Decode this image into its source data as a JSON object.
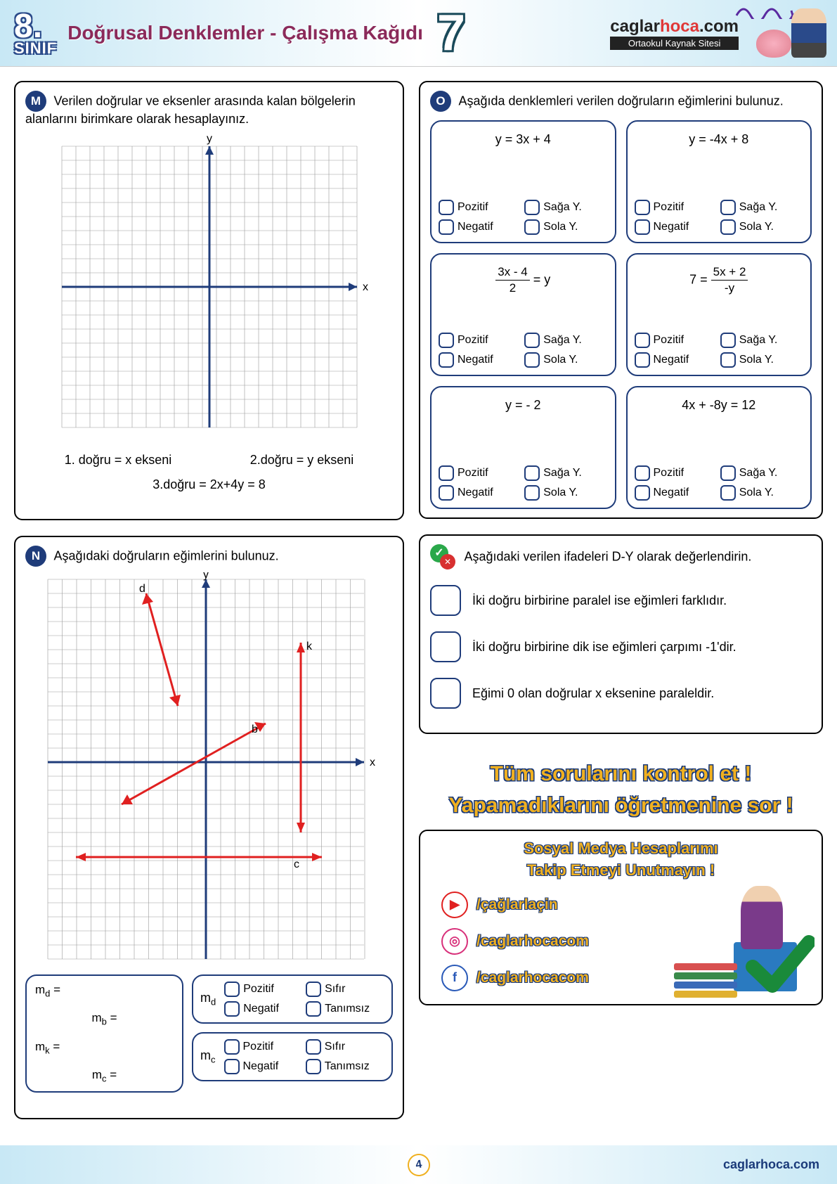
{
  "header": {
    "grade": "8.",
    "grade_sub": "SINIF",
    "title": "Doğrusal Denklemler - Çalışma Kağıdı",
    "page_number": "7",
    "logo_caglar": "caglar",
    "logo_hoca": "hoca",
    "logo_com": ".com",
    "logo_sub": "Ortaokul Kaynak Sitesi"
  },
  "panelM": {
    "badge": "M",
    "title": "Verilen doğrular ve eksenler arasında kalan bölgelerin alanlarını birimkare olarak hesaplayınız.",
    "line1": "1. doğru = x ekseni",
    "line2": "2.doğru = y ekseni",
    "line3": "3.doğru = 2x+4y = 8",
    "axis_colors": {
      "axis": "#1f3c7a",
      "grid": "#999999"
    },
    "x_label": "x",
    "y_label": "y"
  },
  "panelN": {
    "badge": "N",
    "title": "Aşağıdaki doğruların eğimlerini bulunuz.",
    "line_labels": {
      "d": "d",
      "k": "k",
      "b": "b",
      "c": "c"
    },
    "line_color": "#e02020",
    "slopesLeft": {
      "md": "m",
      "mb": "m",
      "mk": "m",
      "mc": "m",
      "sub_d": "d",
      "sub_b": "b",
      "sub_k": "k",
      "sub_c": "c",
      "eq": " ="
    },
    "rightBoxes": [
      {
        "label": "m",
        "sub": "d"
      },
      {
        "label": "m",
        "sub": "c"
      }
    ],
    "checks": {
      "pozitif": "Pozitif",
      "negatif": "Negatif",
      "sifir": "Sıfır",
      "tanimsiz": "Tanımsız"
    }
  },
  "panelO": {
    "badge": "O",
    "title": "Aşağıda denklemleri verilen doğruların eğimlerini bulunuz.",
    "equations": [
      {
        "plain": "y = 3x + 4"
      },
      {
        "plain": "y = -4x + 8"
      },
      {
        "frac_top": "3x - 4",
        "frac_bot": "2",
        "after": " = y"
      },
      {
        "before": "7 = ",
        "frac_top": "5x + 2",
        "frac_bot": "-y"
      },
      {
        "plain": "y = - 2"
      },
      {
        "plain": "4x + -8y = 12"
      }
    ],
    "checks": {
      "pozitif": "Pozitif",
      "negatif": "Negatif",
      "saga": "Sağa Y.",
      "sola": "Sola Y."
    },
    "card_border": "#1f3c7a"
  },
  "panelTF": {
    "title": "Aşağıdaki verilen ifadeleri D-Y olarak değerlendirin.",
    "items": [
      "İki doğru birbirine paralel ise eğimleri farklıdır.",
      "İki doğru birbirine dik ise eğimleri çarpımı -1'dir.",
      "Eğimi 0 olan doğrular x eksenine paraleldir."
    ]
  },
  "panelMsg": {
    "line1": "Tüm sorularını kontrol et !",
    "line2": "Yapamadıklarını öğretmenine sor !"
  },
  "panelSocial": {
    "heading1": "Sosyal Medya Hesaplarımı",
    "heading2": "Takip Etmeyi Unutmayın !",
    "links": [
      {
        "icon": "▶",
        "cls": "yt",
        "text": "/çağlarlaçin"
      },
      {
        "icon": "◎",
        "cls": "ig",
        "text": "/caglarhocacom"
      },
      {
        "icon": "f",
        "cls": "fb",
        "text": "/caglarhocacom"
      }
    ],
    "book_colors": [
      "#d85050",
      "#3a8a4a",
      "#3a6ab8",
      "#e0b030"
    ]
  },
  "footer": {
    "page": "4",
    "url": "caglarhoca.com"
  },
  "colors": {
    "badge_bg": "#1f3c7a",
    "outline_gold": "#f0b020"
  }
}
